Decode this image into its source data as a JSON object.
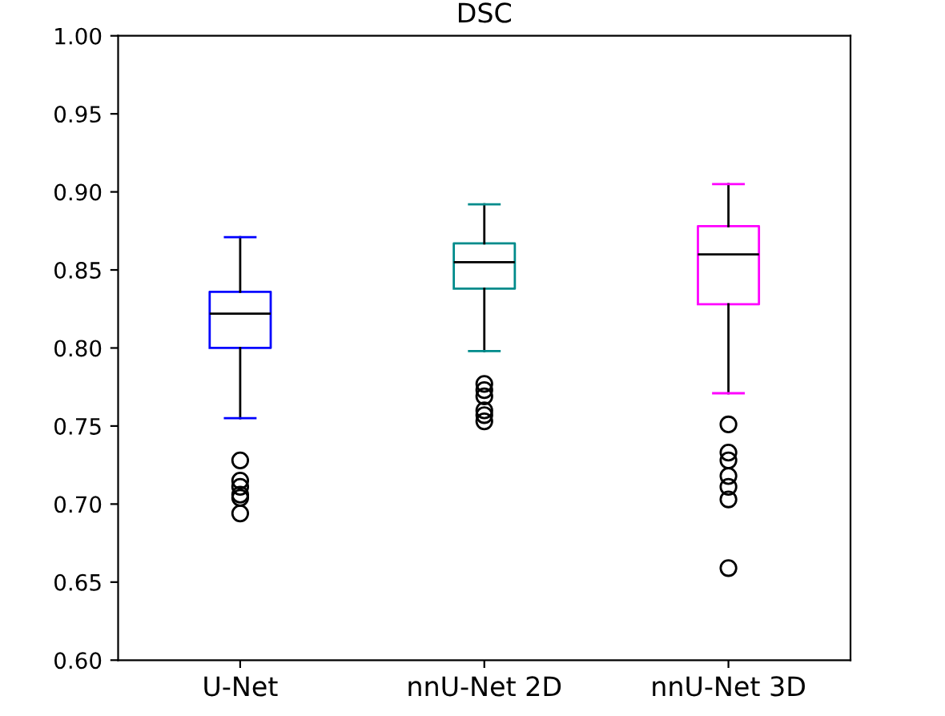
{
  "chart_data": {
    "type": "box",
    "title": "DSC",
    "categories": [
      "U-Net",
      "nnU-Net 2D",
      "nnU-Net 3D"
    ],
    "colors": [
      "#0000ff",
      "#008b8b",
      "#ff00ff"
    ],
    "boxes": [
      {
        "low": 0.755,
        "q1": 0.8,
        "median": 0.822,
        "q3": 0.836,
        "high": 0.871,
        "outliers": [
          0.728,
          0.715,
          0.711,
          0.706,
          0.704,
          0.694
        ]
      },
      {
        "low": 0.798,
        "q1": 0.838,
        "median": 0.855,
        "q3": 0.867,
        "high": 0.892,
        "outliers": [
          0.777,
          0.773,
          0.769,
          0.76,
          0.757,
          0.753
        ]
      },
      {
        "low": 0.771,
        "q1": 0.828,
        "median": 0.86,
        "q3": 0.878,
        "high": 0.905,
        "outliers": [
          0.751,
          0.733,
          0.728,
          0.718,
          0.711,
          0.703,
          0.659
        ]
      }
    ],
    "ylim": [
      0.6,
      1.0
    ],
    "yticks": [
      {
        "value": 0.6,
        "label": "0.60"
      },
      {
        "value": 0.65,
        "label": "0.65"
      },
      {
        "value": 0.7,
        "label": "0.70"
      },
      {
        "value": 0.75,
        "label": "0.75"
      },
      {
        "value": 0.8,
        "label": "0.80"
      },
      {
        "value": 0.85,
        "label": "0.85"
      },
      {
        "value": 0.9,
        "label": "0.90"
      },
      {
        "value": 0.95,
        "label": "0.95"
      },
      {
        "value": 1.0,
        "label": "1.00"
      }
    ],
    "grid": false,
    "legend": false
  }
}
